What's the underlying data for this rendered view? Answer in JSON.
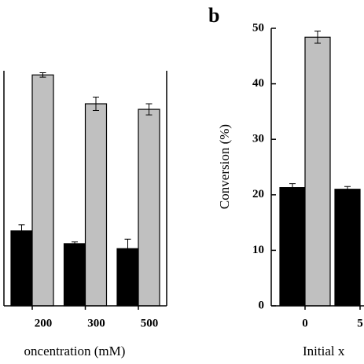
{
  "chart_data": [
    {
      "type": "bar",
      "xlabel": "oncentration (mM)",
      "categories": [
        "200",
        "300",
        "500"
      ],
      "series": [
        {
          "color": "#000000",
          "values": [
            13.5,
            11.2,
            10.3
          ],
          "errors": [
            1.1,
            0.3,
            1.7
          ]
        },
        {
          "color": "#c0c0c0",
          "values": [
            41.6,
            36.4,
            35.4
          ],
          "errors": [
            0.4,
            1.2,
            1.0
          ]
        }
      ],
      "ylim": [
        0,
        50
      ]
    },
    {
      "type": "bar",
      "panel_label": "b",
      "xlabel": "Initial x",
      "ylabel": "Conversion (%)",
      "categories": [
        "0",
        "5"
      ],
      "series": [
        {
          "color": "#000000",
          "values": [
            21.3,
            21.0
          ],
          "errors": [
            0.7,
            0.5
          ]
        },
        {
          "color": "#c0c0c0",
          "values": [
            48.4,
            null
          ],
          "errors": [
            1.1,
            null
          ]
        }
      ],
      "ylim": [
        0,
        50
      ],
      "yticks": [
        0,
        10,
        20,
        30,
        40,
        50
      ]
    }
  ]
}
